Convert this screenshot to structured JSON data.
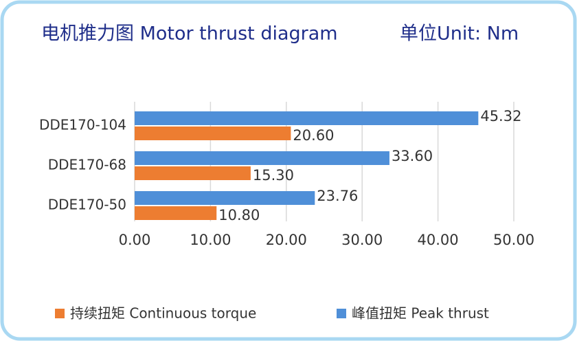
{
  "chart_data": {
    "type": "hbar",
    "title": "电机推力图 Motor thrust diagram",
    "subtitle": "单位Unit: Nm",
    "categories": [
      "DDE170-104",
      "DDE170-68",
      "DDE170-50"
    ],
    "series": [
      {
        "name": "持续扭矩 Continuous torque",
        "color": "#ed7d31",
        "values": [
          20.6,
          15.3,
          10.8
        ],
        "value_labels": [
          "20.60",
          "15.30",
          "10.80"
        ]
      },
      {
        "name": "峰值扭矩 Peak thrust",
        "color": "#4f8fd8",
        "values": [
          45.32,
          33.6,
          23.76
        ],
        "value_labels": [
          "45.32",
          "33.60",
          "23.76"
        ]
      }
    ],
    "xlim": [
      0,
      50
    ],
    "xticks": [
      {
        "value": 0,
        "label": "0.00"
      },
      {
        "value": 10,
        "label": "10.00"
      },
      {
        "value": 20,
        "label": "20.00"
      },
      {
        "value": 30,
        "label": "30.00"
      },
      {
        "value": 40,
        "label": "40.00"
      },
      {
        "value": 50,
        "label": "50.00"
      }
    ],
    "grid": true,
    "legend": "bottom"
  }
}
